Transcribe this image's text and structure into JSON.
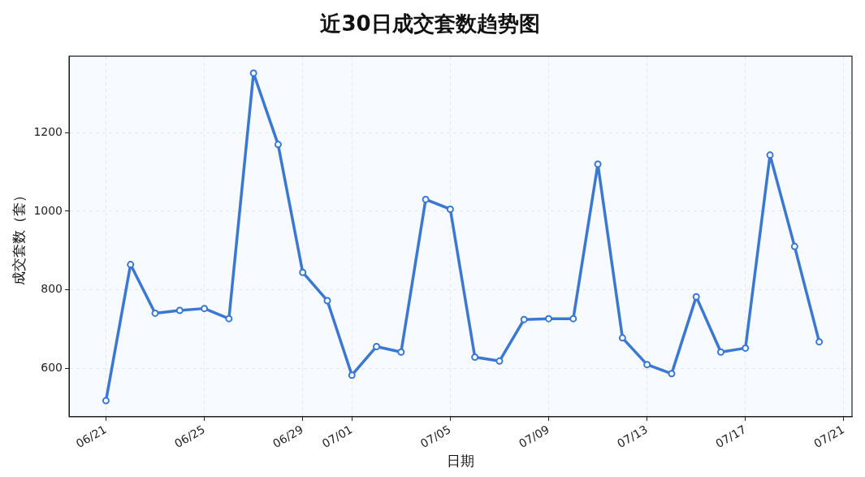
{
  "chart_data": {
    "type": "line",
    "title": "近30日成交套数趋势图",
    "xlabel": "日期",
    "ylabel": "成交套数（套）",
    "x": [
      "--06-21",
      "--06-22",
      "--06-23",
      "--06-24",
      "--06-25",
      "--06-26",
      "--06-27",
      "--06-28",
      "--06-29",
      "--06-30",
      "--07-01",
      "--07-02",
      "--07-03",
      "--07-04",
      "--07-05",
      "--07-06",
      "--07-07",
      "--07-08",
      "--07-09",
      "--07-10",
      "--07-11",
      "--07-12",
      "--07-13",
      "--07-14",
      "--07-15",
      "--07-16",
      "--07-17",
      "--07-18",
      "--07-19",
      "--07-20"
    ],
    "series": [
      {
        "color": "#3a78d4",
        "values": [
          517,
          864,
          740,
          747,
          752,
          726,
          1352,
          1170,
          844,
          772,
          582,
          655,
          641,
          1030,
          1005,
          628,
          618,
          724,
          726,
          726,
          1120,
          677,
          609,
          586,
          782,
          641,
          651,
          1143,
          910,
          667
        ]
      }
    ],
    "xlim": [
      "--06-19T12:00",
      "--07-21T08:00"
    ],
    "xticks": [
      {
        "value": "--06-21",
        "label": "06/21"
      },
      {
        "value": "--06-25",
        "label": "06/25"
      },
      {
        "value": "--06-29",
        "label": "06/29"
      },
      {
        "value": "--07-01",
        "label": "07/01"
      },
      {
        "value": "--07-05",
        "label": "07/05"
      },
      {
        "value": "--07-09",
        "label": "07/09"
      },
      {
        "value": "--07-13",
        "label": "07/13"
      },
      {
        "value": "--07-17",
        "label": "07/17"
      },
      {
        "value": "--07-21",
        "label": "07/21"
      }
    ],
    "ylim": [
      476,
      1395
    ],
    "yticks": [
      600,
      800,
      1000,
      1200
    ],
    "grid": true,
    "marker": "circle",
    "line_style": "solid"
  }
}
